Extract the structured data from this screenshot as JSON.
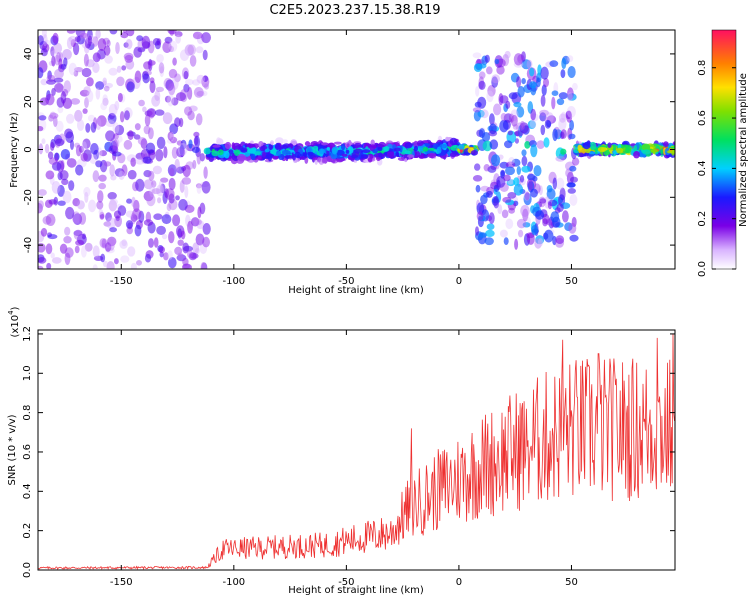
{
  "title": "C2E5.2023.237.15.38.R19",
  "chart_data": [
    {
      "type": "heatmap",
      "xlabel": "Height of straight line (km)",
      "ylabel": "Frequency (Hz)",
      "xlim": [
        -187,
        96
      ],
      "ylim": [
        -50,
        50
      ],
      "xticks": [
        -150,
        -100,
        -50,
        0,
        50
      ],
      "yticks": [
        -40,
        -20,
        0,
        20,
        40
      ],
      "colorbar": {
        "label": "Normalized spectral amplitude",
        "range": [
          0.0,
          0.95
        ],
        "ticks": [
          0.0,
          0.2,
          0.4,
          0.6,
          0.8
        ]
      },
      "regions": [
        {
          "x": [
            -187,
            -112
          ],
          "freq_spread": [
            -50,
            50
          ],
          "peak_amplitude": 0.2
        },
        {
          "x": [
            -112,
            0
          ],
          "center_freq": -1,
          "freq_spread": [
            -5,
            5
          ],
          "peak_amplitude": 0.5
        },
        {
          "x": [
            0,
            8
          ],
          "center_freq": 0,
          "freq_spread": [
            -2,
            2
          ],
          "peak_amplitude": 0.9
        },
        {
          "x": [
            8,
            52
          ],
          "freq_spread": [
            -40,
            40
          ],
          "peak_amplitude": 0.35
        },
        {
          "x": [
            52,
            96
          ],
          "center_freq": 0,
          "freq_spread": [
            -3,
            3
          ],
          "peak_amplitude": 0.9
        }
      ]
    },
    {
      "type": "line",
      "xlabel": "Height of straight line (km)",
      "ylabel": "SNR (10 * v/v)",
      "multiplier": "(x10",
      "multiplier_exp": "4",
      "xlim": [
        -187,
        96
      ],
      "ylim": [
        0.0,
        1.22
      ],
      "xticks": [
        -150,
        -100,
        -50,
        0,
        50
      ],
      "yticks": [
        0.0,
        0.2,
        0.4,
        0.6,
        0.8,
        1.0,
        1.2
      ],
      "series": [
        {
          "color": "#ee3030",
          "trend": [
            {
              "x": -187,
              "y": 0.01
            },
            {
              "x": -112,
              "y": 0.012
            },
            {
              "x": -105,
              "y": 0.1
            },
            {
              "x": -60,
              "y": 0.12
            },
            {
              "x": -30,
              "y": 0.18
            },
            {
              "x": -22,
              "y": 0.3
            },
            {
              "x": -10,
              "y": 0.38
            },
            {
              "x": 10,
              "y": 0.5
            },
            {
              "x": 30,
              "y": 0.6
            },
            {
              "x": 50,
              "y": 0.68
            },
            {
              "x": 96,
              "y": 0.68
            }
          ],
          "peaks": [
            {
              "x": -21,
              "y": 0.72
            },
            {
              "x": 30,
              "y": 0.82
            },
            {
              "x": 46,
              "y": 1.17
            },
            {
              "x": 62,
              "y": 1.1
            },
            {
              "x": 88,
              "y": 1.18
            },
            {
              "x": 95,
              "y": 1.2
            }
          ]
        }
      ]
    }
  ]
}
